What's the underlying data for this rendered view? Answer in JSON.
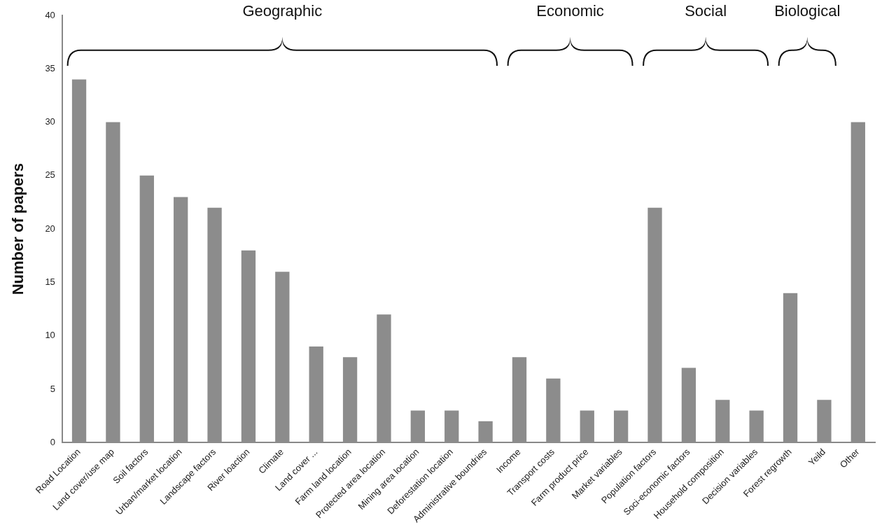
{
  "chart_data": {
    "type": "bar",
    "ylabel": "Number of papers",
    "categories": [
      "Road Location",
      "Land cover/use map",
      "Soil factors",
      "Urban/market location",
      "Landscape factors",
      "River loaction",
      "Climate",
      "Land cover ...",
      "Farm land location",
      "Protected area location",
      "Mining area location",
      "Deforestation location",
      "Administrative boundries",
      "Income",
      "Transport costs",
      "Farm product price",
      "Market variables",
      "Population factors",
      "Soci-economic factors",
      "Household composition",
      "Decision variables",
      "Forest regrowth",
      "Yeild",
      "Other"
    ],
    "values": [
      34,
      30,
      25,
      23,
      22,
      18,
      16,
      9,
      8,
      12,
      3,
      3,
      2,
      8,
      6,
      3,
      3,
      22,
      7,
      4,
      3,
      14,
      4,
      30
    ],
    "color": "#8c8c8c",
    "ylim": [
      0,
      40
    ],
    "yticks": [
      0,
      5,
      10,
      15,
      20,
      25,
      30,
      35,
      40
    ],
    "annotations": [
      "Geographic",
      "Economic",
      "Social",
      "Biological"
    ]
  }
}
